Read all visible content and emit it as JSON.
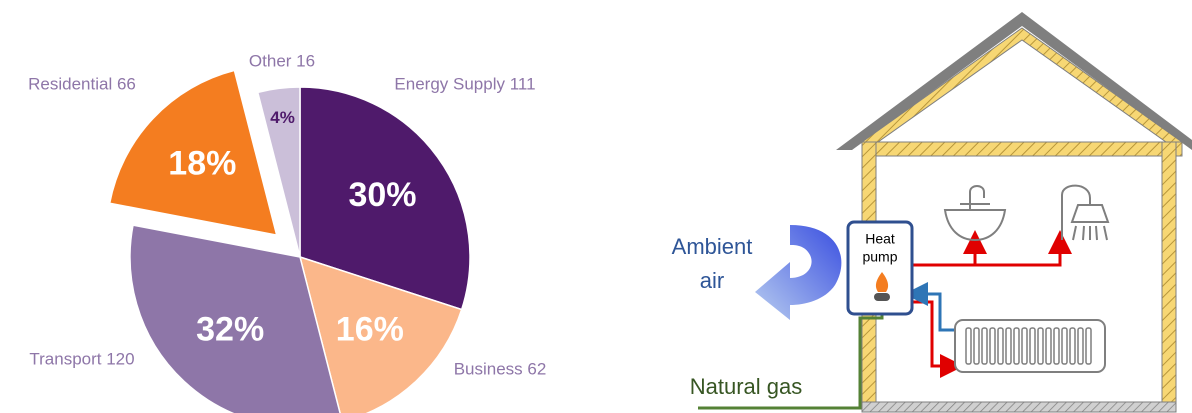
{
  "chart_data": {
    "type": "pie",
    "categories": [
      "Energy Supply 111",
      "Business 62",
      "Transport 120",
      "Residential 66",
      "Other 16"
    ],
    "values": [
      30,
      16,
      32,
      18,
      4
    ],
    "value_labels": [
      "30%",
      "16%",
      "32%",
      "18%",
      "4%"
    ],
    "colors": [
      "#4f1a6b",
      "#fbb78a",
      "#8e76a8",
      "#f47d20",
      "#cbbfd9"
    ],
    "exploded": [
      false,
      false,
      false,
      true,
      false
    ]
  },
  "diagram": {
    "labels": {
      "ambient": [
        "Ambient",
        "air"
      ],
      "heat_pump": [
        "Heat",
        "pump"
      ],
      "gas": "Natural gas"
    }
  }
}
